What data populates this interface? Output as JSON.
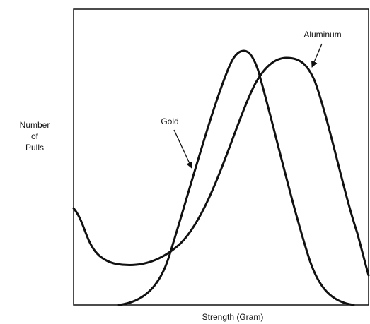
{
  "axis_labels": {
    "y": [
      "Number",
      "of",
      "Pulls"
    ],
    "x": "Strength (Gram)"
  },
  "annotations": [
    "Gold",
    "Aluminum"
  ]
}
